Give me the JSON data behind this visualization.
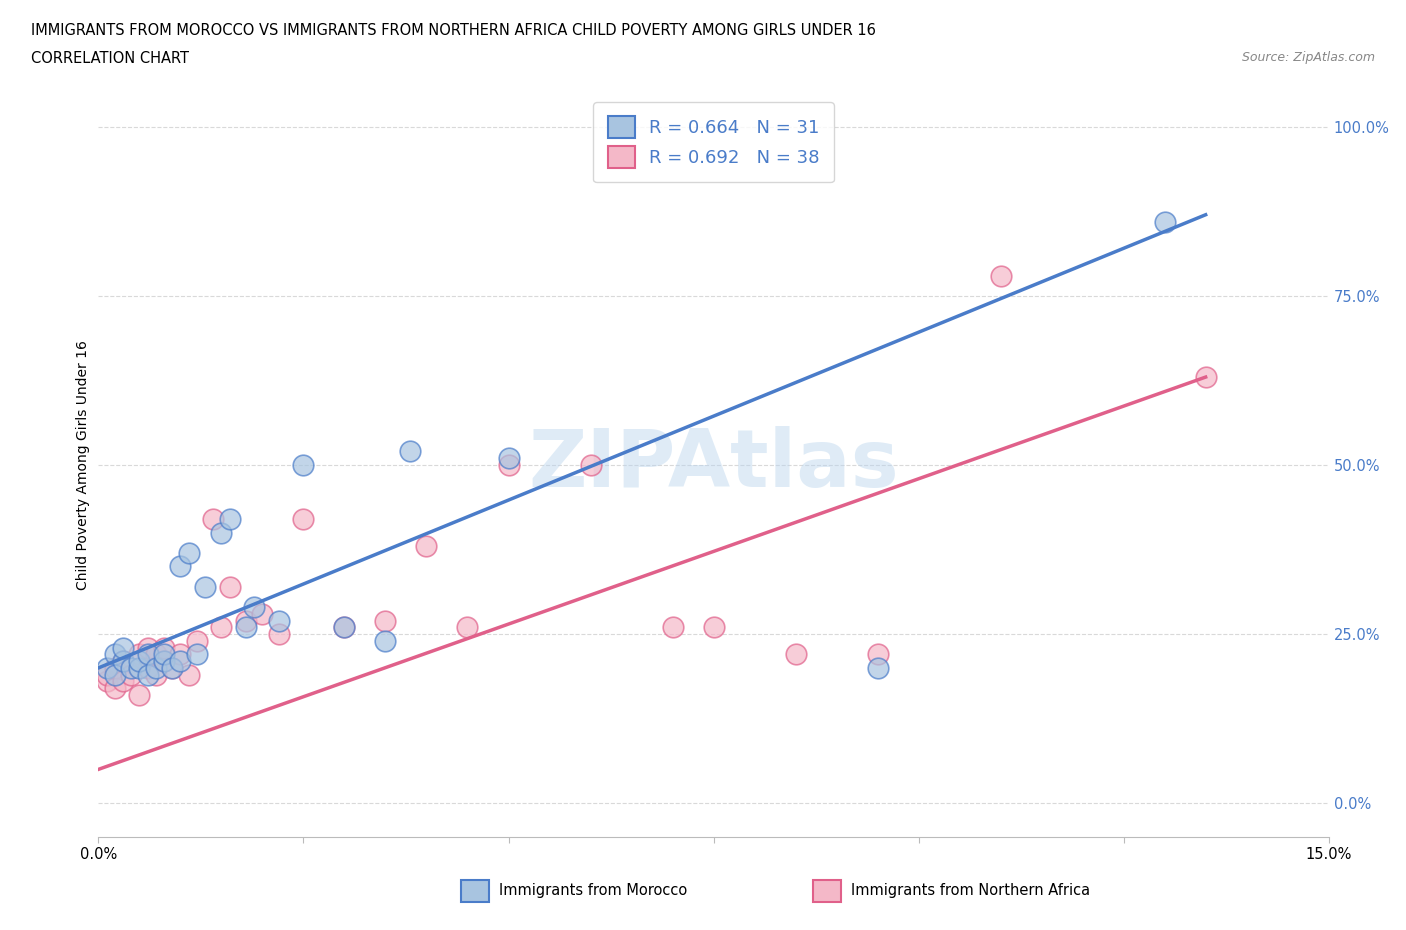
{
  "title_line1": "IMMIGRANTS FROM MOROCCO VS IMMIGRANTS FROM NORTHERN AFRICA CHILD POVERTY AMONG GIRLS UNDER 16",
  "title_line2": "CORRELATION CHART",
  "source_text": "Source: ZipAtlas.com",
  "ylabel": "Child Poverty Among Girls Under 16",
  "xlim": [
    0.0,
    0.15
  ],
  "ylim": [
    -0.05,
    1.05
  ],
  "yticks": [
    0.0,
    0.25,
    0.5,
    0.75,
    1.0
  ],
  "ytick_labels": [
    "0.0%",
    "25.0%",
    "50.0%",
    "75.0%",
    "100.0%"
  ],
  "xticks": [
    0.0,
    0.025,
    0.05,
    0.075,
    0.1,
    0.125,
    0.15
  ],
  "watermark": "ZIPAtlas",
  "morocco_color": "#a8c4e0",
  "northern_africa_color": "#f4b8c8",
  "morocco_line_color": "#4a7cc9",
  "northern_africa_line_color": "#e0608a",
  "r_morocco": 0.664,
  "n_morocco": 31,
  "r_northern_africa": 0.692,
  "n_northern_africa": 38,
  "morocco_scatter_x": [
    0.001,
    0.002,
    0.002,
    0.003,
    0.003,
    0.004,
    0.005,
    0.005,
    0.006,
    0.006,
    0.007,
    0.008,
    0.008,
    0.009,
    0.01,
    0.01,
    0.011,
    0.012,
    0.013,
    0.015,
    0.016,
    0.018,
    0.019,
    0.022,
    0.025,
    0.03,
    0.035,
    0.038,
    0.05,
    0.095,
    0.13
  ],
  "morocco_scatter_y": [
    0.2,
    0.19,
    0.22,
    0.21,
    0.23,
    0.2,
    0.2,
    0.21,
    0.22,
    0.19,
    0.2,
    0.21,
    0.22,
    0.2,
    0.21,
    0.35,
    0.37,
    0.22,
    0.32,
    0.4,
    0.42,
    0.26,
    0.29,
    0.27,
    0.5,
    0.26,
    0.24,
    0.52,
    0.51,
    0.2,
    0.86
  ],
  "northern_africa_scatter_x": [
    0.001,
    0.001,
    0.002,
    0.002,
    0.003,
    0.003,
    0.004,
    0.005,
    0.005,
    0.006,
    0.006,
    0.007,
    0.007,
    0.008,
    0.008,
    0.009,
    0.01,
    0.011,
    0.012,
    0.014,
    0.015,
    0.016,
    0.018,
    0.02,
    0.022,
    0.025,
    0.03,
    0.035,
    0.04,
    0.045,
    0.05,
    0.06,
    0.07,
    0.075,
    0.085,
    0.095,
    0.11,
    0.135
  ],
  "northern_africa_scatter_y": [
    0.18,
    0.19,
    0.17,
    0.2,
    0.18,
    0.21,
    0.19,
    0.16,
    0.22,
    0.2,
    0.23,
    0.19,
    0.22,
    0.21,
    0.23,
    0.2,
    0.22,
    0.19,
    0.24,
    0.42,
    0.26,
    0.32,
    0.27,
    0.28,
    0.25,
    0.42,
    0.26,
    0.27,
    0.38,
    0.26,
    0.5,
    0.5,
    0.26,
    0.26,
    0.22,
    0.22,
    0.78,
    0.63
  ],
  "morocco_trend_x": [
    0.0,
    0.135
  ],
  "morocco_trend_y": [
    0.2,
    0.87
  ],
  "northern_africa_trend_x": [
    0.0,
    0.135
  ],
  "northern_africa_trend_y": [
    0.05,
    0.63
  ],
  "background_color": "#ffffff",
  "grid_color": "#d0d0d0"
}
